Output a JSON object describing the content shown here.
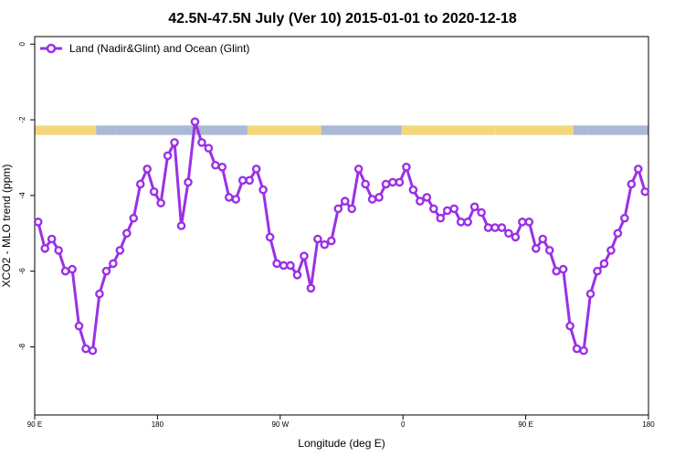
{
  "chart_data": {
    "type": "line",
    "title": "42.5N-47.5N July (Ver 10)   2015-01-01 to 2020-12-18",
    "xlabel": "Longitude (deg E)",
    "ylabel": "XCO2 - MLO trend (ppm)",
    "x_ticks": [
      {
        "value": 90,
        "label": "90 E"
      },
      {
        "value": 180,
        "label": "180"
      },
      {
        "value": 270,
        "label": "90 W"
      },
      {
        "value": 360,
        "label": "0"
      },
      {
        "value": 450,
        "label": "90 E"
      },
      {
        "value": 540,
        "label": "180"
      }
    ],
    "y_ticks": [
      0,
      -2,
      -4,
      -6,
      -8
    ],
    "xlim": [
      90,
      540
    ],
    "ylim": [
      -9.8,
      0.2
    ],
    "grid": false,
    "legend_position": "top-left",
    "series": [
      {
        "name": "Land (Nadir&Glint) and Ocean (Glint)",
        "color": "#9b30e6",
        "x": [
          92.5,
          97.5,
          102.5,
          107.5,
          112.5,
          117.5,
          122.5,
          127.5,
          132.5,
          137.5,
          142.5,
          147.5,
          152.5,
          157.5,
          162.5,
          167.5,
          172.5,
          177.5,
          182.5,
          187.5,
          192.5,
          197.5,
          202.5,
          207.5,
          212.5,
          217.5,
          222.5,
          227.5,
          232.5,
          237.5,
          242.5,
          247.5,
          252.5,
          257.5,
          262.5,
          267.5,
          272.5,
          277.5,
          282.5,
          287.5,
          292.5,
          297.5,
          302.5,
          307.5,
          312.5,
          317.5,
          322.5,
          327.5,
          332.5,
          337.5,
          342.5,
          347.5,
          352.5,
          357.5,
          362.5,
          367.5,
          372.5,
          377.5,
          382.5,
          387.5,
          392.5,
          397.5,
          402.5,
          407.5,
          412.5,
          417.5,
          422.5,
          427.5,
          432.5,
          437.5,
          442.5,
          447.5,
          452.5,
          457.5,
          462.5,
          467.5,
          472.5,
          477.5,
          482.5,
          487.5,
          492.5,
          497.5,
          502.5,
          507.5,
          512.5,
          517.5,
          522.5,
          527.5,
          532.5,
          537.5
        ],
        "y": [
          -4.7,
          -5.4,
          -5.15,
          -5.45,
          -6.0,
          -5.95,
          -7.45,
          -8.05,
          -8.1,
          -6.6,
          -6.0,
          -5.8,
          -5.45,
          -5.0,
          -4.6,
          -3.7,
          -3.3,
          -3.9,
          -4.2,
          -2.95,
          -2.6,
          -4.8,
          -3.65,
          -2.05,
          -2.6,
          -2.75,
          -3.2,
          -3.25,
          -4.05,
          -4.1,
          -3.6,
          -3.6,
          -3.3,
          -3.85,
          -5.1,
          -5.8,
          -5.85,
          -5.85,
          -6.1,
          -5.6,
          -6.45,
          -5.15,
          -5.3,
          -5.2,
          -4.35,
          -4.15,
          -4.35,
          -3.3,
          -3.7,
          -4.1,
          -4.05,
          -3.7,
          -3.65,
          -3.65,
          -3.25,
          -3.85,
          -4.15,
          -4.05,
          -4.35,
          -4.6,
          -4.4,
          -4.35,
          -4.7,
          -4.7,
          -4.3,
          -4.45,
          -4.85,
          -4.85,
          -4.85,
          -5.0,
          -5.1,
          -4.7,
          -4.7,
          -5.4,
          -5.15,
          -5.45,
          -6.0,
          -5.95,
          -7.45,
          -8.05,
          -8.1,
          -6.6,
          -6.0,
          -5.8,
          -5.45,
          -5.0,
          -4.6,
          -3.7,
          -3.3,
          -3.9
        ]
      }
    ],
    "land_ocean_band": {
      "y_range": [
        -2.15,
        -2.4
      ],
      "land_color": "#f5d77a",
      "ocean_color": "#a9b9d6",
      "segments": [
        {
          "from": 90,
          "to": 135,
          "kind": "land"
        },
        {
          "from": 135,
          "to": 150,
          "kind": "ocean"
        },
        {
          "from": 150,
          "to": 246,
          "kind": "ocean"
        },
        {
          "from": 246,
          "to": 300,
          "kind": "land"
        },
        {
          "from": 300,
          "to": 359,
          "kind": "ocean"
        },
        {
          "from": 359,
          "to": 428,
          "kind": "land"
        },
        {
          "from": 428,
          "to": 450,
          "kind": "land"
        },
        {
          "from": 450,
          "to": 485,
          "kind": "land"
        },
        {
          "from": 485,
          "to": 496,
          "kind": "ocean"
        },
        {
          "from": 496,
          "to": 540,
          "kind": "ocean"
        }
      ]
    }
  }
}
